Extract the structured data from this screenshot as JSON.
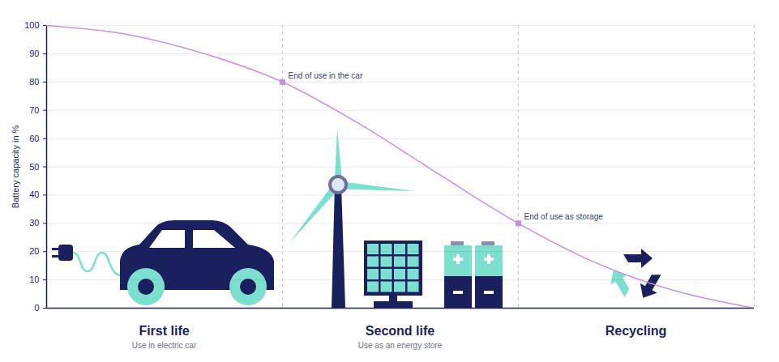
{
  "chart_data": {
    "type": "line",
    "y_label": "Battery capacity in %",
    "x": [
      0,
      0.33,
      0.67,
      1,
      1.33,
      1.67,
      2,
      2.33,
      2.67,
      3
    ],
    "values": [
      100,
      97,
      90,
      80,
      65,
      47,
      30,
      16,
      6,
      0
    ],
    "color": "#c98fe0",
    "xlim": [
      0,
      3
    ],
    "xticks": [
      1,
      2,
      3
    ],
    "ylim": [
      0,
      100
    ],
    "yticks": [
      0,
      10,
      20,
      30,
      40,
      50,
      60,
      70,
      80,
      90,
      100
    ],
    "grid": true,
    "tick_labels": "y",
    "annotations": [
      {
        "x": 1,
        "y": 80,
        "text": "End of use in the car"
      },
      {
        "x": 2,
        "y": 30,
        "text": "End of use as storage"
      }
    ],
    "phases": [
      {
        "label": "First life",
        "sublabel": "Use in electric car"
      },
      {
        "label": "Second life",
        "sublabel": "Use as an energy store"
      },
      {
        "label": "Recycling",
        "sublabel": ""
      }
    ]
  }
}
